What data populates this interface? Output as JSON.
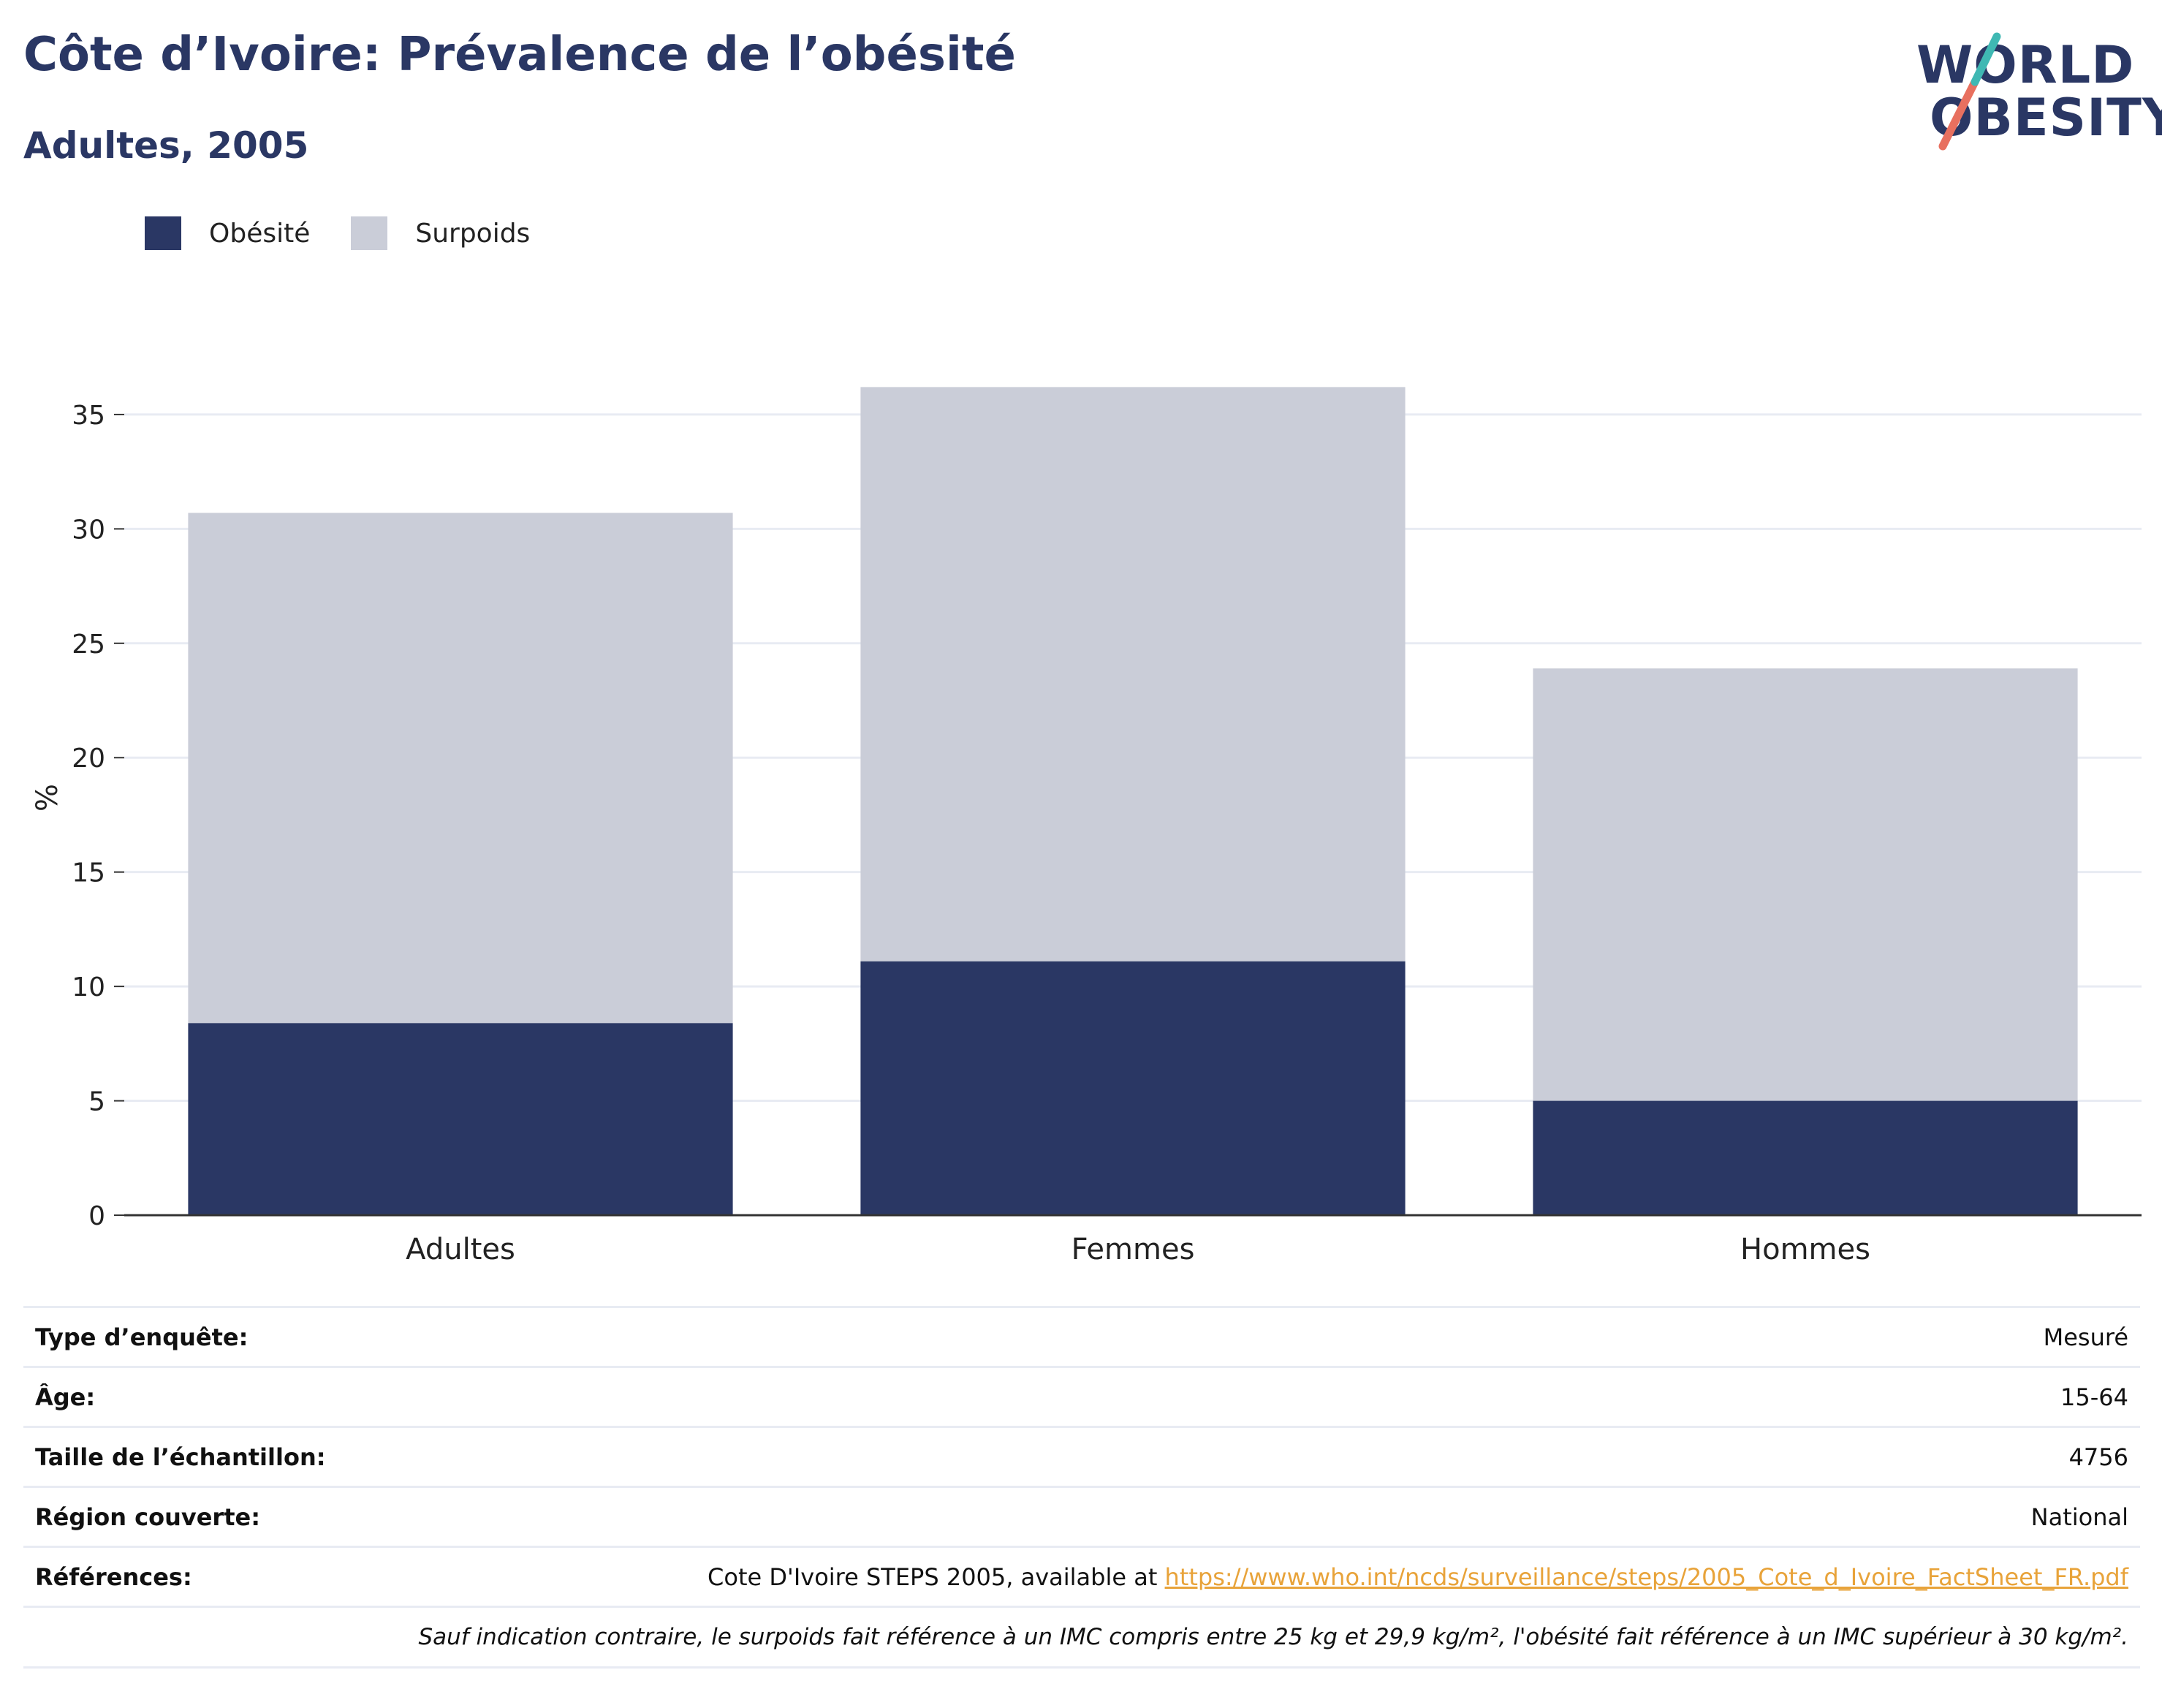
{
  "title": "Côte d’Ivoire: Prévalence de l’obésité",
  "subtitle": "Adultes, 2005",
  "logo": {
    "line1": "WORLD",
    "line2": "OBESITY",
    "slash_colors": [
      "#e8705f",
      "#3fb8b3"
    ]
  },
  "colors": {
    "obesity": "#2a3764",
    "overweight": "#cacdd8",
    "title": "#2a3764",
    "link": "#e8a33a"
  },
  "chart_data": {
    "type": "bar",
    "stacked": true,
    "categories": [
      "Adultes",
      "Femmes",
      "Hommes"
    ],
    "series": [
      {
        "name": "Obésité",
        "values": [
          8.4,
          11.1,
          5.0
        ]
      },
      {
        "name": "Surpoids",
        "values": [
          22.3,
          25.1,
          18.9
        ]
      }
    ],
    "ylabel": "%",
    "ylim": [
      0,
      36.5
    ],
    "yticks": [
      0,
      5,
      10,
      15,
      20,
      25,
      30,
      35
    ],
    "grid": true,
    "legend_position": "top-left"
  },
  "info": {
    "rows": [
      {
        "label": "Type d’enquête:",
        "value": "Mesuré"
      },
      {
        "label": "Âge:",
        "value": "15-64"
      },
      {
        "label": "Taille de l’échantillon:",
        "value": "4756"
      },
      {
        "label": "Région couverte:",
        "value": "National"
      }
    ],
    "references": {
      "label": "Références:",
      "text": "Cote D'Ivoire STEPS 2005, available at ",
      "link": "https://www.who.int/ncds/surveillance/steps/2005_Cote_d_Ivoire_FactSheet_FR.pdf"
    },
    "note": "Sauf indication contraire, le surpoids fait référence à un IMC compris entre 25 kg et 29,9 kg/m², l'obésité fait référence à un IMC supérieur à 30 kg/m²."
  }
}
